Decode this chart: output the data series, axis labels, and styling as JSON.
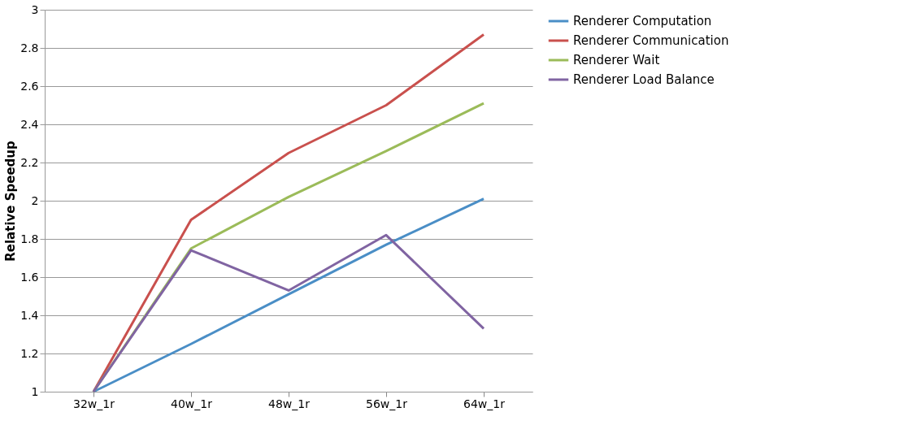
{
  "chart_data": {
    "type": "line",
    "ylabel": "Relative Speedup",
    "categories": [
      "32w_1r",
      "40w_1r",
      "48w_1r",
      "56w_1r",
      "64w_1r"
    ],
    "series": [
      {
        "name": "Renderer Computation",
        "color": "#4a8ec6",
        "values": [
          1,
          1.25,
          1.51,
          1.77,
          2.01
        ]
      },
      {
        "name": "Renderer Communication",
        "color": "#c9504d",
        "values": [
          1,
          1.9,
          2.25,
          2.5,
          2.87
        ]
      },
      {
        "name": "Renderer Wait",
        "color": "#9bbb59",
        "values": [
          1,
          1.75,
          2.02,
          2.26,
          2.51
        ]
      },
      {
        "name": "Renderer Load Balance",
        "color": "#8064a2",
        "values": [
          1,
          1.74,
          1.53,
          1.82,
          1.33
        ]
      }
    ],
    "ylim": [
      1,
      3
    ],
    "yticks": [
      1,
      1.2,
      1.4,
      1.6,
      1.8,
      2,
      2.2,
      2.4,
      2.6,
      2.8,
      3
    ],
    "grid": "y",
    "legend": "right"
  }
}
